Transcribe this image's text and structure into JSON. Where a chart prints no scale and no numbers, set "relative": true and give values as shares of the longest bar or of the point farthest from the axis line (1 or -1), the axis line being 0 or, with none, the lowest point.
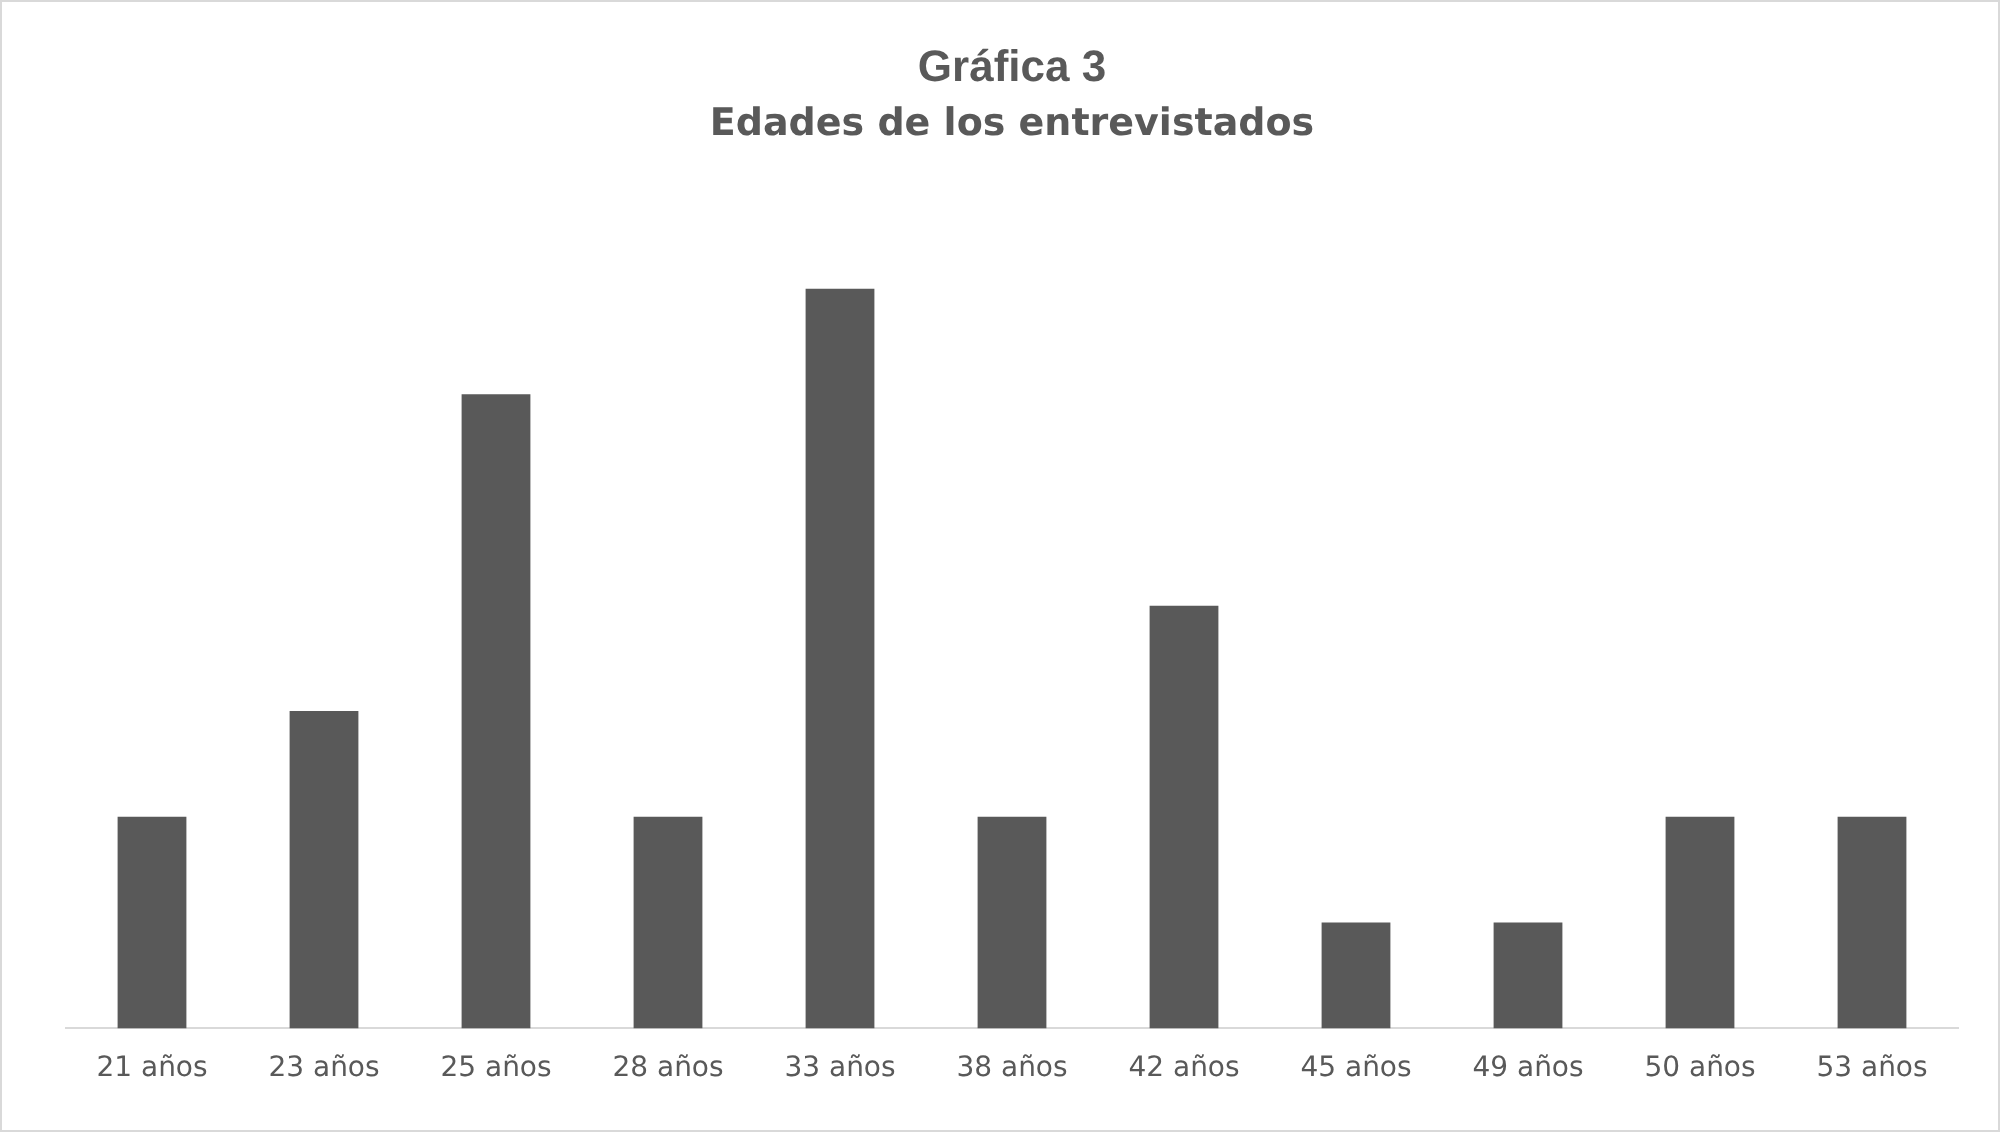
{
  "chart_data": {
    "type": "bar",
    "title": "Gráfica 3",
    "subtitle": "Edades de los entrevistados",
    "categories": [
      "21 años",
      "23 años",
      "25 años",
      "28 años",
      "33 años",
      "38 años",
      "42 años",
      "45 años",
      "49 años",
      "50 años",
      "53 años"
    ],
    "values": [
      0.286,
      0.429,
      0.857,
      0.286,
      1,
      0.286,
      0.571,
      0.143,
      0.143,
      0.286,
      0.286
    ],
    "color": "#595959",
    "relative": true,
    "grid": false,
    "legend": false
  }
}
